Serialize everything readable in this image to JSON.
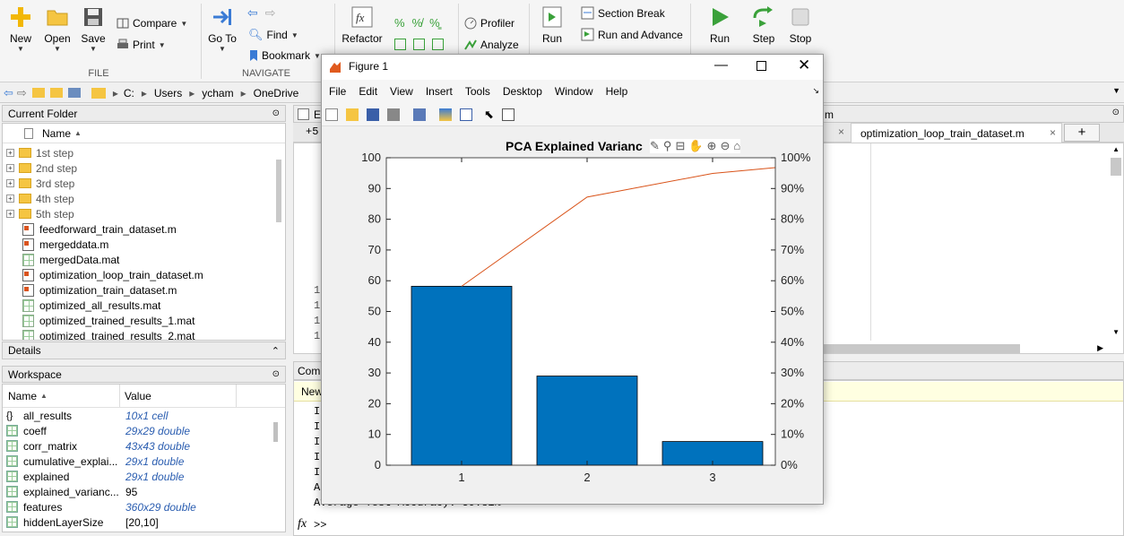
{
  "ribbon": {
    "file": {
      "new": "New",
      "open": "Open",
      "save": "Save",
      "compare": "Compare",
      "print": "Print",
      "group": "FILE"
    },
    "navigate": {
      "goto": "Go To",
      "find": "Find",
      "bookmark": "Bookmark",
      "group": "NAVIGATE"
    },
    "code": {
      "refactor": "Refactor",
      "profiler": "Profiler",
      "analyze": "Analyze"
    },
    "run": {
      "run_section": "Run",
      "section_break": "Section Break",
      "run_and_advance": "Run and Advance",
      "run": "Run",
      "step": "Step",
      "stop": "Stop"
    }
  },
  "address": {
    "drive": "C:",
    "parts": [
      "Users",
      "ycham",
      "OneDrive"
    ]
  },
  "current_folder": {
    "title": "Current Folder",
    "column": "Name",
    "items": [
      {
        "name": "1st step",
        "type": "folder"
      },
      {
        "name": "2nd step",
        "type": "folder"
      },
      {
        "name": "3rd step",
        "type": "folder"
      },
      {
        "name": "4th step",
        "type": "folder"
      },
      {
        "name": "5th step",
        "type": "folder"
      },
      {
        "name": "feedforward_train_dataset.m",
        "type": "m"
      },
      {
        "name": "mergeddata.m",
        "type": "m"
      },
      {
        "name": "mergedData.mat",
        "type": "mat"
      },
      {
        "name": "optimization_loop_train_dataset.m",
        "type": "m"
      },
      {
        "name": "optimization_train_dataset.m",
        "type": "m"
      },
      {
        "name": "optimized_all_results.mat",
        "type": "mat"
      },
      {
        "name": "optimized_trained_results_1.mat",
        "type": "mat"
      },
      {
        "name": "optimized_trained_results_2.mat",
        "type": "mat"
      }
    ]
  },
  "details": {
    "title": "Details"
  },
  "workspace": {
    "title": "Workspace",
    "col_name": "Name",
    "col_value": "Value",
    "vars": [
      {
        "name": "all_results",
        "value": "10x1 cell"
      },
      {
        "name": "coeff",
        "value": "29x29 double"
      },
      {
        "name": "corr_matrix",
        "value": "43x43 double"
      },
      {
        "name": "cumulative_explai...",
        "value": "29x1 double"
      },
      {
        "name": "explained",
        "value": "29x1 double"
      },
      {
        "name": "explained_varianc...",
        "value": "95"
      },
      {
        "name": "features",
        "value": "360x29 double"
      },
      {
        "name": "hiddenLayerSize",
        "value": "[20,10]"
      }
    ]
  },
  "editor": {
    "tab_prefix": "Ed",
    "tab_active": "optimization_loop_train_dataset.m",
    "tab_m": "m",
    "zoom": "+5",
    "lines": [
      "10",
      "11",
      "12",
      "13"
    ],
    "tab_close": "×",
    "tab_add": "+"
  },
  "command": {
    "title": "Comm",
    "new_banner": "New",
    "lines": [
      "I",
      "I",
      "I",
      "I",
      "I",
      "A"
    ],
    "last_line": "Average Test Accuracy: 59.81%",
    "prompt": ">>",
    "fx": "fx"
  },
  "figure": {
    "title": "Figure 1",
    "menu": [
      "File",
      "Edit",
      "View",
      "Insert",
      "Tools",
      "Desktop",
      "Window",
      "Help"
    ],
    "accent": "#0072bd",
    "line_color": "#d95319"
  },
  "chart_data": {
    "type": "bar",
    "title": "PCA Explained Varianc",
    "categories": [
      "1",
      "2",
      "3"
    ],
    "values": [
      58.2,
      29.0,
      7.7
    ],
    "ylim": [
      0,
      100
    ],
    "yticks": [
      "0",
      "10",
      "20",
      "30",
      "40",
      "50",
      "60",
      "70",
      "80",
      "90",
      "100"
    ],
    "y2ticks": [
      "0%",
      "10%",
      "20%",
      "30%",
      "40%",
      "50%",
      "60%",
      "70%",
      "80%",
      "90%",
      "100%"
    ],
    "y2lim": [
      0,
      100
    ],
    "cumulative_line": {
      "x": [
        1,
        2,
        3,
        3.5
      ],
      "values": [
        58.2,
        87.2,
        94.9,
        96.8
      ]
    }
  }
}
